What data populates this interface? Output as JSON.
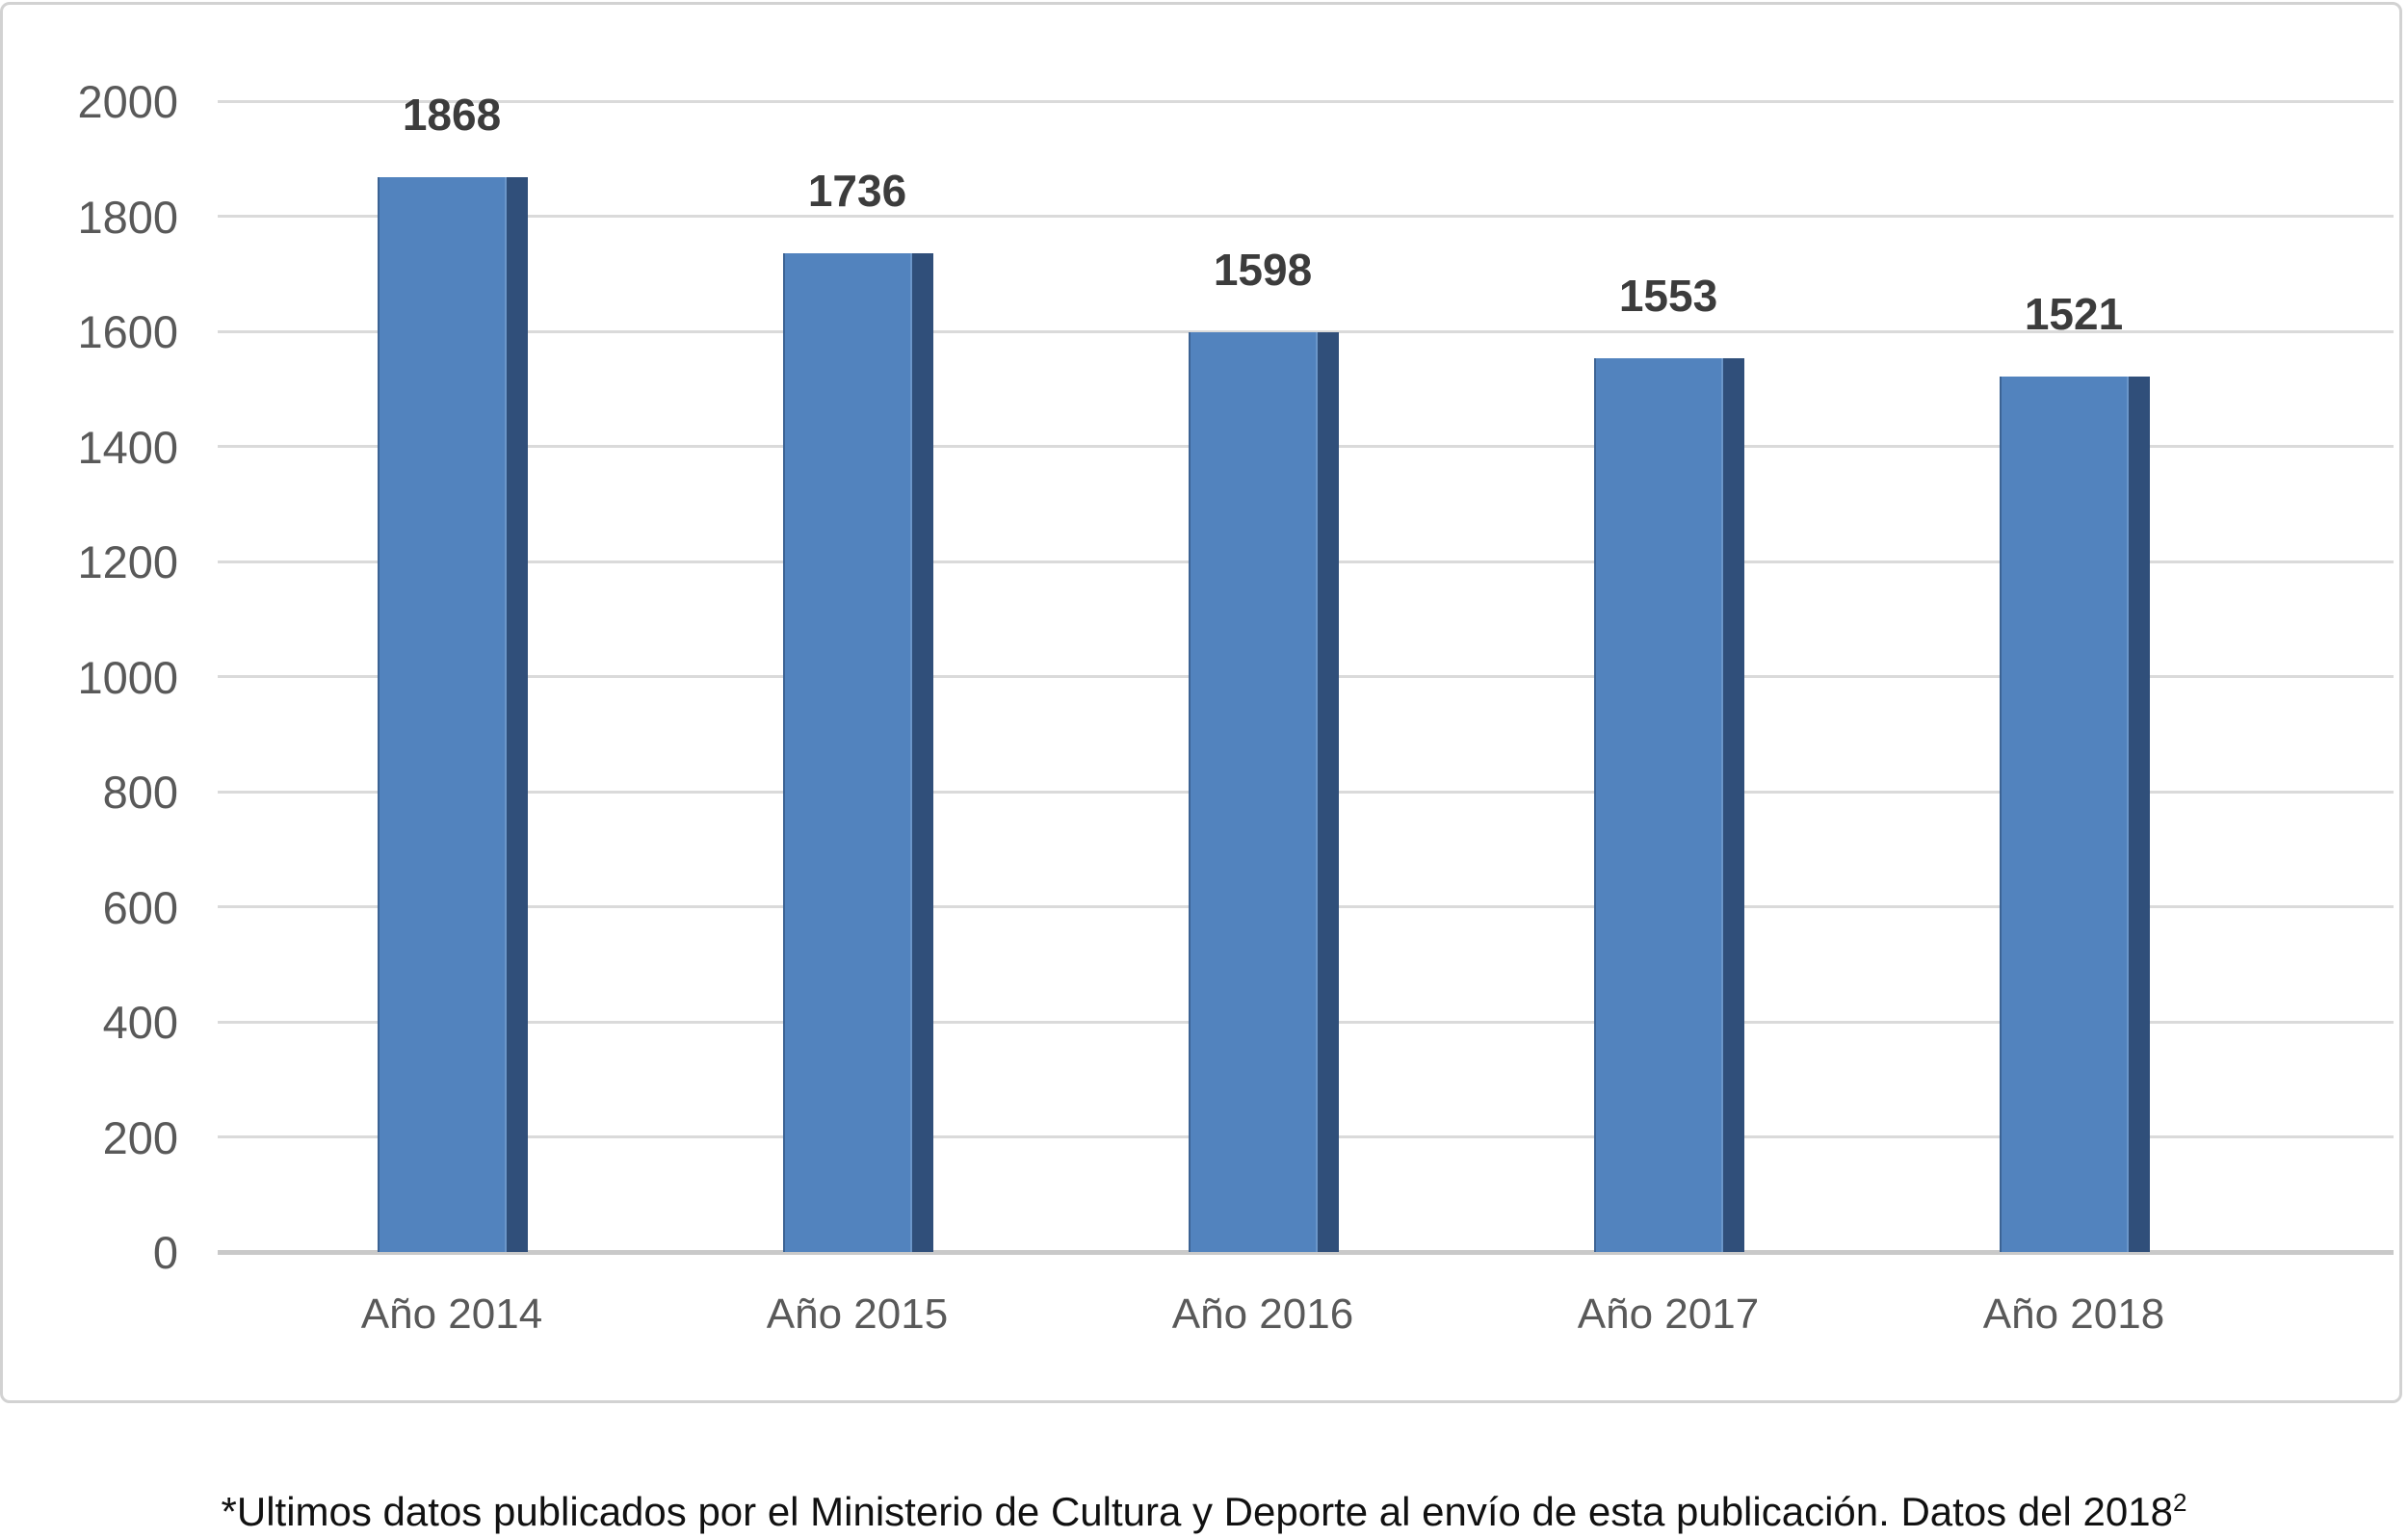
{
  "chart_data": {
    "type": "bar",
    "categories": [
      "Año 2014",
      "Año 2015",
      "Año 2016",
      "Año 2017",
      "Año 2018"
    ],
    "values": [
      1868,
      1736,
      1598,
      1553,
      1521
    ],
    "value_labels": [
      "1868",
      "1736",
      "1598",
      "1553",
      "1521"
    ],
    "title": "",
    "xlabel": "",
    "ylabel": "",
    "ylim": [
      0,
      2000
    ],
    "ytick_step": 200,
    "ytick_labels": [
      "0",
      "200",
      "400",
      "600",
      "800",
      "1000",
      "1200",
      "1400",
      "1600",
      "1800",
      "2000"
    ],
    "grid": true,
    "legend_position": "none",
    "colors": {
      "bar_fill": "#5283be",
      "bar_side_3d": "#304f7a",
      "gridline": "#dadada",
      "axis_line": "#c9c9c9",
      "tick_label": "#595959",
      "value_label": "#3c3c3c"
    }
  },
  "footnote": {
    "text": "*Ultimos datos publicados por el Ministerio de Cultura y Deporte al envío de esta publicación. Datos del 2018",
    "superscript": "2"
  }
}
